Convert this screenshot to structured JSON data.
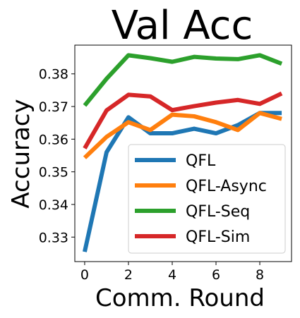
{
  "chart_data": {
    "type": "line",
    "title": "Val Acc",
    "xlabel": "Comm. Round",
    "ylabel": "Accuracy",
    "x": [
      0,
      1,
      2,
      3,
      4,
      5,
      6,
      7,
      8,
      9
    ],
    "xlim": [
      -0.45,
      9.45
    ],
    "ylim": [
      0.3225,
      0.3888
    ],
    "xticks": [
      "0",
      "2",
      "4",
      "6",
      "8"
    ],
    "yticks": [
      "0.33",
      "0.34",
      "0.35",
      "0.36",
      "0.37",
      "0.38"
    ],
    "legend_position": "lower-right",
    "series": [
      {
        "name": "QFL",
        "color": "#1f77b4",
        "values": [
          0.3255,
          0.356,
          0.3667,
          0.3618,
          0.3618,
          0.3632,
          0.3618,
          0.3643,
          0.368,
          0.368
        ]
      },
      {
        "name": "QFL-Async",
        "color": "#ff7f0e",
        "values": [
          0.3543,
          0.3607,
          0.3652,
          0.3628,
          0.3675,
          0.367,
          0.3652,
          0.3628,
          0.368,
          0.3662
        ]
      },
      {
        "name": "QFL-Seq",
        "color": "#2ca02c",
        "values": [
          0.3703,
          0.3785,
          0.3857,
          0.3848,
          0.3837,
          0.3852,
          0.3847,
          0.3845,
          0.3857,
          0.3831
        ]
      },
      {
        "name": "QFL-Sim",
        "color": "#d62728",
        "values": [
          0.3572,
          0.3688,
          0.3736,
          0.3731,
          0.3689,
          0.3701,
          0.3712,
          0.372,
          0.3708,
          0.374
        ]
      }
    ]
  }
}
